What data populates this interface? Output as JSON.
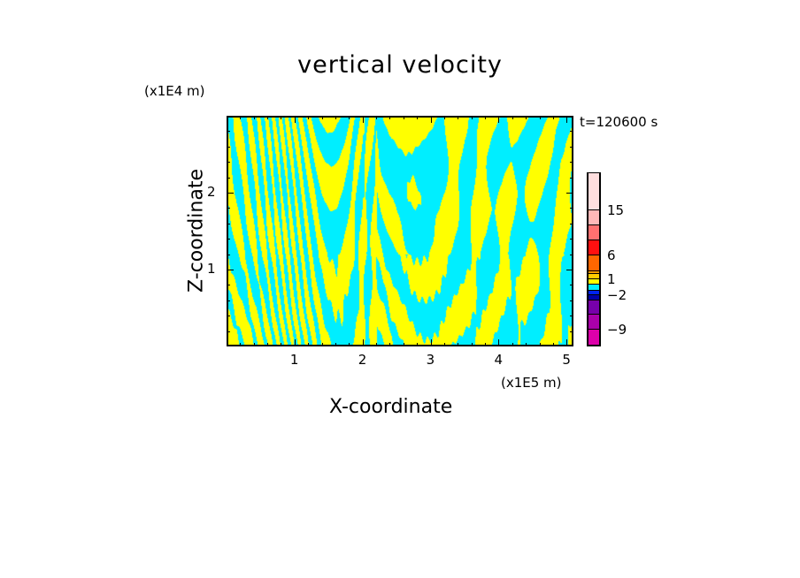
{
  "chart_data": {
    "type": "heatmap",
    "title": "vertical velocity",
    "xlabel": "X-coordinate",
    "ylabel": "Z-coordinate",
    "x_unit": "(x1E5 m)",
    "z_unit": "(x1E4 m)",
    "time_label": "t=120600 s",
    "xlim": [
      0,
      5.1
    ],
    "ylim": [
      0,
      3.0
    ],
    "xticks": [
      "1",
      "2",
      "3",
      "4",
      "5"
    ],
    "yticks": [
      "1",
      "2"
    ],
    "colorbar": {
      "levels": [
        -12,
        -9,
        -6,
        -4,
        -2,
        -1,
        0,
        1,
        2,
        3,
        6,
        9,
        12,
        15,
        18
      ],
      "colors": [
        "#dd00aa",
        "#aa00aa",
        "#7700aa",
        "#0000aa",
        "#0022ee",
        "#00eeff",
        "#ffff00",
        "#ffcc00",
        "#ff9900",
        "#ff6600",
        "#ff1010",
        "#ff7070",
        "#ffb8b8",
        "#ffdede"
      ],
      "tick_labels": [
        "-9",
        "-2",
        "1",
        "6",
        "15"
      ]
    },
    "dominant_colors": {
      "positive": "#ffff00",
      "negative": "#00eeff"
    }
  }
}
